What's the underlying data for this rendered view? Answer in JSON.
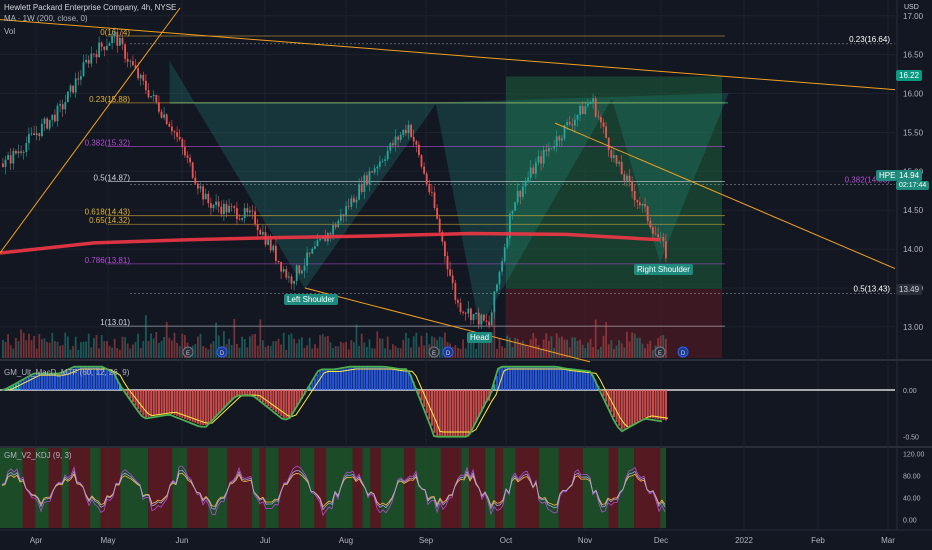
{
  "header": {
    "symbol_line": "Hewlett Packard Enterprise Company, 4h, NYSE",
    "vol_label": "Vol",
    "ma_label": "MA · 1W (200, close, 0)",
    "currency": "USD"
  },
  "colors": {
    "background": "#131722",
    "up": "#26a69a",
    "down": "#ef5350",
    "ma": "#f23645",
    "fib_gold": "#e0b13b",
    "fib_purple": "#b04fd0",
    "pattern": "#22a594",
    "trend": "#f0a020",
    "long_zone": "#1b5e3a",
    "short_zone": "#5e1b22"
  },
  "chart_data": [
    {
      "type": "candlestick",
      "name": "price",
      "x_ticks": [
        "Apr",
        "May",
        "Jun",
        "Jul",
        "Aug",
        "Sep",
        "Oct",
        "Nov",
        "Dec",
        "2022",
        "Feb",
        "Mar"
      ],
      "y_ticks": [
        "17.00",
        "16.50",
        "16.00",
        "15.50",
        "15.00",
        "14.50",
        "14.00",
        "13.50",
        "13.00"
      ],
      "ylim": [
        12.6,
        17.1
      ],
      "price_path": [
        [
          "Apr",
          15.1
        ],
        [
          "Apr",
          15.8
        ],
        [
          "May",
          16.5
        ],
        [
          "May",
          16.74
        ],
        [
          "May",
          16.2
        ],
        [
          "Jun",
          15.6
        ],
        [
          "Jun",
          14.6
        ],
        [
          "Jul",
          14.4
        ],
        [
          "Jul",
          13.6
        ],
        [
          "Aug",
          14.3
        ],
        [
          "Aug",
          15.0
        ],
        [
          "Sep",
          15.6
        ],
        [
          "Sep",
          14.6
        ],
        [
          "Sep",
          13.3
        ],
        [
          "Oct",
          13.01
        ],
        [
          "Oct",
          14.6
        ],
        [
          "Oct",
          15.1
        ],
        [
          "Nov",
          15.6
        ],
        [
          "Nov",
          15.92
        ],
        [
          "Nov",
          15.1
        ],
        [
          "Dec",
          14.5
        ],
        [
          "Dec",
          13.9
        ],
        [
          "Dec",
          14.94
        ]
      ],
      "ma_200": {
        "label": "MA · 1W (200, close, 0)",
        "values": [
          13.95,
          14.08,
          14.12,
          14.15,
          14.17,
          14.2,
          14.19,
          14.12
        ]
      },
      "fib_levels": [
        {
          "ratio": "0",
          "price": 16.74,
          "label": "0(16.74)",
          "color": "gold"
        },
        {
          "ratio": "0.23",
          "price": 15.88,
          "label": "0.23(15.88)",
          "color": "gold"
        },
        {
          "ratio": "0.382",
          "price": 15.32,
          "label": "0.382(15.32)",
          "color": "purple"
        },
        {
          "ratio": "0.5",
          "price": 14.87,
          "label": "0.5(14.87)",
          "color": "white"
        },
        {
          "ratio": "0.618",
          "price": 14.43,
          "label": "0.618(14.43)",
          "color": "gold"
        },
        {
          "ratio": "0.65",
          "price": 14.32,
          "label": "0.65(14.32)",
          "color": "gold"
        },
        {
          "ratio": "0.786",
          "price": 13.81,
          "label": "0.786(13.81)",
          "color": "purple"
        },
        {
          "ratio": "1",
          "price": 13.01,
          "label": "1(13.01)",
          "color": "white"
        }
      ],
      "right_fib_labels": [
        {
          "label": "0.23(16.64)",
          "price": 16.64
        },
        {
          "label": "0.382(14.83)",
          "price": 14.83
        },
        {
          "label": "0.5(13.43)",
          "price": 13.43
        }
      ],
      "annotations": [
        "Left Shoulder",
        "Head",
        "Right Shoulder"
      ],
      "price_tags": [
        {
          "text": "16.22",
          "price": 16.22
        },
        {
          "symbol": "HPE",
          "text": "14.94",
          "sub": "02:17:44",
          "price": 14.94
        },
        {
          "text": "13.49",
          "price": 13.49
        }
      ],
      "event_markers": [
        "E",
        "D",
        "E",
        "D",
        "E",
        "D"
      ]
    },
    {
      "type": "histogram",
      "name": "GM_Ult_MacD_MTF",
      "title": "GM_Ult_MacD_MTF (60, 12, 26, 9)",
      "y_ticks": [
        "0.00",
        "-0.50"
      ],
      "ylim": [
        -0.6,
        0.3
      ]
    },
    {
      "type": "line",
      "name": "GM_V2_KDJ",
      "title": "GM_V2_KDJ (9, 3)",
      "y_ticks": [
        "120.00",
        "80.00",
        "40.00",
        "0.00"
      ],
      "ylim": [
        -15,
        130
      ]
    }
  ]
}
